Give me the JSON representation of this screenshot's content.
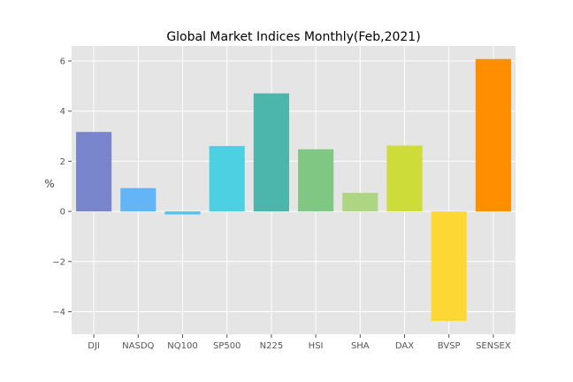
{
  "chart_data": {
    "type": "bar",
    "title": "Global Market Indices Monthly(Feb,2021)",
    "xlabel": "",
    "ylabel": "%",
    "categories": [
      "DJI",
      "NASDQ",
      "NQ100",
      "SP500",
      "N225",
      "HSI",
      "SHA",
      "DAX",
      "BVSP",
      "SENSEX"
    ],
    "values": [
      3.17,
      0.93,
      -0.12,
      2.61,
      4.71,
      2.48,
      0.74,
      2.63,
      -4.37,
      6.08
    ],
    "colors": [
      "#7986cb",
      "#64b5f6",
      "#4fc3f7",
      "#4dd0e1",
      "#4db6ac",
      "#81c784",
      "#aed581",
      "#cddc39",
      "#fdd835",
      "#ff8f00"
    ],
    "ylim": [
      -4.9,
      6.6
    ],
    "yticks": [
      -4,
      -2,
      0,
      2,
      4,
      6
    ],
    "ytick_labels": [
      "−4",
      "−2",
      "0",
      "2",
      "4",
      "6"
    ],
    "grid": true,
    "background": "#e5e5e5"
  }
}
